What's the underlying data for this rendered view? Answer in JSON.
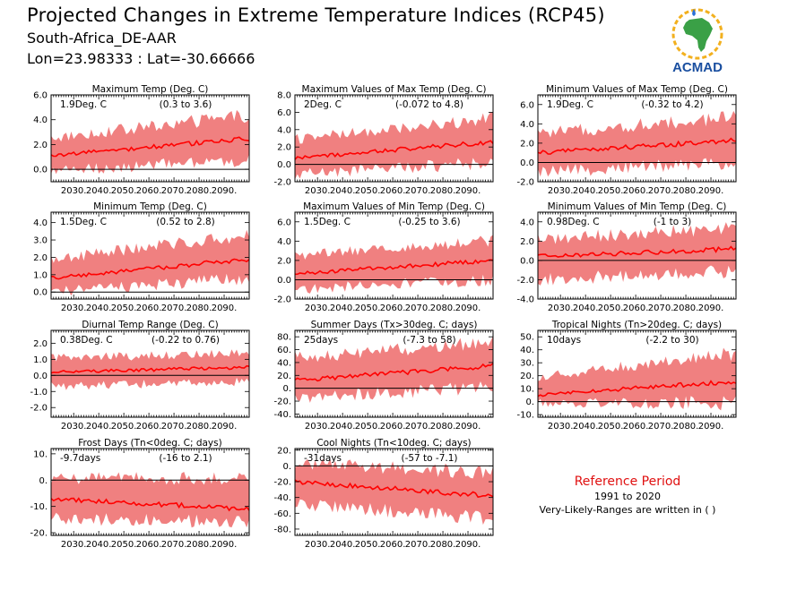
{
  "header": {
    "title": "Projected Changes in Extreme Temperature Indices (RCP45)",
    "subtitle": "South-Africa_DE-AAR",
    "location": "Lon=23.98333 : Lat=-30.66666"
  },
  "logo": {
    "text": "ACMAD",
    "icon": "africa-map-logo"
  },
  "reference": {
    "title": "Reference Period",
    "period": "1991 to 2020",
    "note": "Very-Likely-Ranges are written in ( )"
  },
  "colors": {
    "band": "#f08080",
    "line": "#ff0000",
    "zero": "#000000"
  },
  "chart_data": [
    {
      "id": "txmean",
      "type": "area",
      "title": "Maximum Temp (Deg. C)",
      "summary": "1.9Deg. C",
      "range": "(0.3 to 3.6)",
      "x": [
        2021,
        2100
      ],
      "xticks": [
        2030,
        2040,
        2050,
        2060,
        2070,
        2080,
        2090
      ],
      "xtick_labels": [
        "2030.",
        "2040.",
        "2050.",
        "2060.",
        "2070.",
        "2080.",
        "2090."
      ],
      "ylim": [
        -1.0,
        6.0
      ],
      "yticks": [
        -0.0,
        2.0,
        4.0,
        6.0
      ],
      "ytick_labels": [
        "0.0",
        "2.0",
        "4.0",
        "6.0"
      ],
      "median_start": 1.1,
      "median_end": 2.5,
      "low_start": 0.0,
      "low_end": 0.9,
      "high_start": 2.4,
      "high_end": 4.2
    },
    {
      "id": "txx",
      "type": "area",
      "title": "Maximum Values of Max Temp (Deg. C)",
      "summary": "2Deg. C",
      "range": "(-0.072 to 4.8)",
      "x": [
        2021,
        2100
      ],
      "xticks": [
        2030,
        2040,
        2050,
        2060,
        2070,
        2080,
        2090
      ],
      "xtick_labels": [
        "2030.",
        "2040.",
        "2050.",
        "2060.",
        "2070.",
        "2080.",
        "2090."
      ],
      "ylim": [
        -2.0,
        8.0
      ],
      "yticks": [
        -2.0,
        0.0,
        2.0,
        4.0,
        6.0,
        8.0
      ],
      "ytick_labels": [
        "-2.0",
        "0.0",
        "2.0",
        "4.0",
        "6.0",
        "8.0"
      ],
      "median_start": 0.7,
      "median_end": 2.6,
      "low_start": -0.9,
      "low_end": 0.4,
      "high_start": 2.7,
      "high_end": 5.0
    },
    {
      "id": "txn",
      "type": "area",
      "title": "Minimum Values of Max Temp (Deg. C)",
      "summary": "1.9Deg. C",
      "range": "(-0.32 to 4.2)",
      "x": [
        2021,
        2100
      ],
      "xticks": [
        2030,
        2040,
        2050,
        2060,
        2070,
        2080,
        2090
      ],
      "xtick_labels": [
        "2030.",
        "2040.",
        "2050.",
        "2060.",
        "2070.",
        "2080.",
        "2090."
      ],
      "ylim": [
        -2.0,
        7.0
      ],
      "yticks": [
        -2.0,
        0.0,
        2.0,
        4.0,
        6.0
      ],
      "ytick_labels": [
        "-2.0",
        "0.0",
        "2.0",
        "4.0",
        "6.0"
      ],
      "median_start": 1.0,
      "median_end": 2.3,
      "low_start": -0.8,
      "low_end": 0.2,
      "high_start": 2.8,
      "high_end": 4.5
    },
    {
      "id": "tnmean",
      "type": "area",
      "title": "Minimum Temp (Deg. C)",
      "summary": "1.5Deg. C",
      "range": "(0.52 to 2.8)",
      "x": [
        2021,
        2100
      ],
      "xticks": [
        2030,
        2040,
        2050,
        2060,
        2070,
        2080,
        2090
      ],
      "xtick_labels": [
        "2030.",
        "2040.",
        "2050.",
        "2060.",
        "2070.",
        "2080.",
        "2090."
      ],
      "ylim": [
        -0.4,
        4.6
      ],
      "yticks": [
        0.0,
        1.0,
        2.0,
        3.0,
        4.0
      ],
      "ytick_labels": [
        "0.0",
        "1.0",
        "2.0",
        "3.0",
        "4.0"
      ],
      "median_start": 0.8,
      "median_end": 1.9,
      "low_start": 0.1,
      "low_end": 0.9,
      "high_start": 1.8,
      "high_end": 3.2
    },
    {
      "id": "tnx",
      "type": "area",
      "title": "Maximum Values of Min Temp (Deg. C)",
      "summary": "1.5Deg. C",
      "range": "(-0.25 to 3.6)",
      "x": [
        2021,
        2100
      ],
      "xticks": [
        2030,
        2040,
        2050,
        2060,
        2070,
        2080,
        2090
      ],
      "xtick_labels": [
        "2030.",
        "2040.",
        "2050.",
        "2060.",
        "2070.",
        "2080.",
        "2090."
      ],
      "ylim": [
        -2.0,
        7.0
      ],
      "yticks": [
        -2.0,
        0.0,
        2.0,
        4.0,
        6.0
      ],
      "ytick_labels": [
        "-2.0",
        "0.0",
        "2.0",
        "4.0",
        "6.0"
      ],
      "median_start": 0.6,
      "median_end": 2.0,
      "low_start": -0.8,
      "low_end": 0.2,
      "high_start": 2.3,
      "high_end": 3.9
    },
    {
      "id": "tnn",
      "type": "area",
      "title": "Minimum Values of Min Temp (Deg. C)",
      "summary": "0.98Deg. C",
      "range": "(-1 to 3)",
      "x": [
        2021,
        2100
      ],
      "xticks": [
        2030,
        2040,
        2050,
        2060,
        2070,
        2080,
        2090
      ],
      "xtick_labels": [
        "2030.",
        "2040.",
        "2050.",
        "2060.",
        "2070.",
        "2080.",
        "2090."
      ],
      "ylim": [
        -4.0,
        5.0
      ],
      "yticks": [
        -4.0,
        -2.0,
        0.0,
        2.0,
        4.0
      ],
      "ytick_labels": [
        "-4.0",
        "-2.0",
        "0.0",
        "2.0",
        "4.0"
      ],
      "median_start": 0.4,
      "median_end": 1.2,
      "low_start": -1.8,
      "low_end": -0.9,
      "high_start": 2.0,
      "high_end": 3.2
    },
    {
      "id": "dtr",
      "type": "area",
      "title": "Diurnal Temp Range (Deg. C)",
      "summary": "0.38Deg. C",
      "range": "(-0.22 to 0.76)",
      "x": [
        2021,
        2100
      ],
      "xticks": [
        2030,
        2040,
        2050,
        2060,
        2070,
        2080,
        2090
      ],
      "xtick_labels": [
        "2030.",
        "2040.",
        "2050.",
        "2060.",
        "2070.",
        "2080.",
        "2090."
      ],
      "ylim": [
        -2.6,
        2.8
      ],
      "yticks": [
        -2.0,
        -1.0,
        0.0,
        1.0,
        2.0
      ],
      "ytick_labels": [
        "-2.0",
        "-1.0",
        "0.0",
        "1.0",
        "2.0"
      ],
      "median_start": 0.2,
      "median_end": 0.5,
      "low_start": -0.6,
      "low_end": -0.3,
      "high_start": 1.0,
      "high_end": 1.3
    },
    {
      "id": "su",
      "type": "area",
      "title": "Summer Days (Tx>30deg. C; days)",
      "summary": "25days",
      "range": "(-7.3 to 58)",
      "x": [
        2021,
        2100
      ],
      "xticks": [
        2030,
        2040,
        2050,
        2060,
        2070,
        2080,
        2090
      ],
      "xtick_labels": [
        "2030.",
        "2040.",
        "2050.",
        "2060.",
        "2070.",
        "2080.",
        "2090."
      ],
      "ylim": [
        -45,
        90
      ],
      "yticks": [
        -40,
        -20,
        0,
        20,
        40,
        60,
        80
      ],
      "ytick_labels": [
        "-40.",
        "-20.",
        "0.",
        "20.",
        "40.",
        "60.",
        "80."
      ],
      "median_start": 12,
      "median_end": 35,
      "low_start": -12,
      "low_end": 5,
      "high_start": 45,
      "high_end": 68
    },
    {
      "id": "tr",
      "type": "area",
      "title": "Tropical Nights (Tn>20deg. C; days)",
      "summary": "10days",
      "range": "(-2.2 to 30)",
      "x": [
        2021,
        2100
      ],
      "xticks": [
        2030,
        2040,
        2050,
        2060,
        2070,
        2080,
        2090
      ],
      "xtick_labels": [
        "2030.",
        "2040.",
        "2050.",
        "2060.",
        "2070.",
        "2080.",
        "2090."
      ],
      "ylim": [
        -12,
        55
      ],
      "yticks": [
        -10,
        0,
        10,
        20,
        30,
        40,
        50
      ],
      "ytick_labels": [
        "-10.",
        "0.",
        "10.",
        "20.",
        "30.",
        "40.",
        "50."
      ],
      "median_start": 5,
      "median_end": 16,
      "low_start": 0,
      "low_end": 1,
      "high_start": 18,
      "high_end": 36
    },
    {
      "id": "fd",
      "type": "area",
      "title": "Frost Days (Tn<0deg. C; days)",
      "summary": "-9.7days",
      "range": "(-16 to 2.1)",
      "x": [
        2021,
        2100
      ],
      "xticks": [
        2030,
        2040,
        2050,
        2060,
        2070,
        2080,
        2090
      ],
      "xtick_labels": [
        "2030.",
        "2040.",
        "2050.",
        "2060.",
        "2070.",
        "2080.",
        "2090."
      ],
      "ylim": [
        -21,
        12
      ],
      "yticks": [
        -20,
        -10,
        0,
        10
      ],
      "ytick_labels": [
        "-20.",
        "-10.",
        "0.",
        "10."
      ],
      "median_start": -7,
      "median_end": -11,
      "low_start": -14,
      "low_end": -15,
      "high_start": 0,
      "high_end": 0
    },
    {
      "id": "cn",
      "type": "area",
      "title": "Cool Nights (Tn<10deg. C; days)",
      "summary": "-31days",
      "range": "(-57 to -7.1)",
      "x": [
        2021,
        2100
      ],
      "xticks": [
        2030,
        2040,
        2050,
        2060,
        2070,
        2080,
        2090
      ],
      "xtick_labels": [
        "2030.",
        "2040.",
        "2050.",
        "2060.",
        "2070.",
        "2080.",
        "2090."
      ],
      "ylim": [
        -88,
        22
      ],
      "yticks": [
        -80,
        -60,
        -40,
        -20,
        0,
        20
      ],
      "ytick_labels": [
        "-80.",
        "-60.",
        "-40.",
        "-20.",
        "0.",
        "20."
      ],
      "median_start": -20,
      "median_end": -38,
      "low_start": -45,
      "low_end": -65,
      "high_start": 2,
      "high_end": -12
    }
  ]
}
